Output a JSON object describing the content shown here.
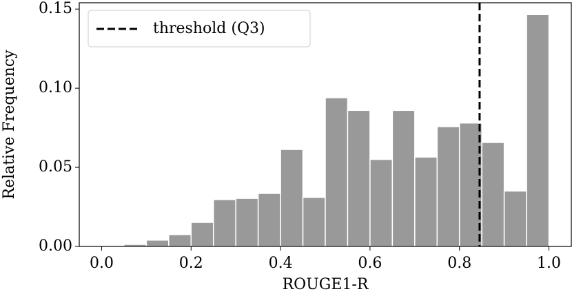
{
  "chart_data": {
    "type": "histogram",
    "xlabel": "ROUGE1-R",
    "ylabel": "Relative Frequency",
    "bins": [
      0,
      0.05,
      0.1,
      0.15,
      0.2,
      0.25,
      0.3,
      0.35,
      0.4,
      0.45,
      0.5,
      0.55,
      0.6,
      0.65,
      0.7,
      0.75,
      0.8,
      0.85,
      0.9,
      0.95,
      1
    ],
    "values": [
      0,
      0.0013,
      0.004,
      0.0075,
      0.0152,
      0.0296,
      0.0304,
      0.0335,
      0.0613,
      0.031,
      0.094,
      0.086,
      0.055,
      0.086,
      0.0565,
      0.0757,
      0.078,
      0.0657,
      0.035,
      0.1465
    ],
    "color": "#999999",
    "xlim": [
      -0.05,
      1.05
    ],
    "xticks": [
      {
        "value": 0,
        "label": "0.0"
      },
      0.2,
      0.4,
      0.6,
      0.8,
      {
        "value": 1,
        "label": "1.0"
      }
    ],
    "ylim": [
      0,
      0.154
    ],
    "yticks": [
      {
        "value": 0,
        "label": "0.00"
      },
      0.05,
      {
        "value": 0.1,
        "label": "0.10"
      },
      0.15
    ],
    "vlines": [
      {
        "name": "threshold (Q3)",
        "x": 0.845,
        "color": "#000000",
        "style": "dashed"
      }
    ],
    "legend": "upper left"
  }
}
